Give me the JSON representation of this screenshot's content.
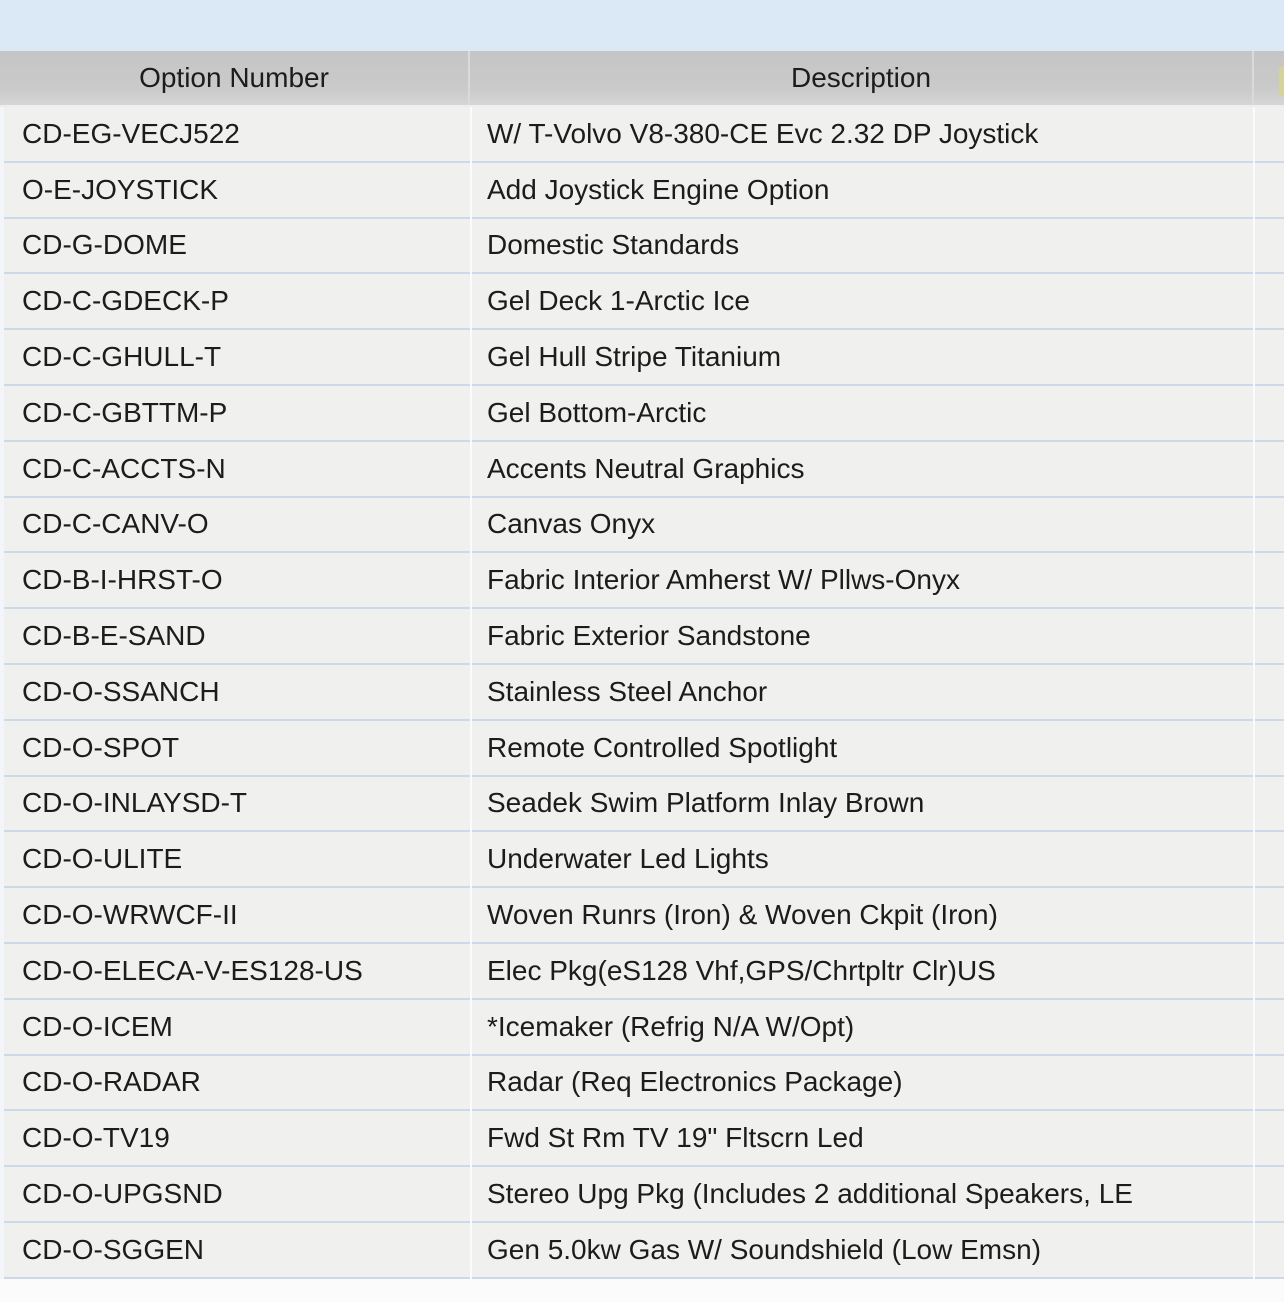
{
  "window": {
    "description": "Desktop application data grid listing boat option codes"
  },
  "colors": {
    "top_band": "#dbe8f6",
    "header_bg": "#c9c9c9",
    "row_bg": "#f0f0ee",
    "row_divider": "#ccd9e9",
    "text": "#1c1c1c",
    "accent": "#d6d29c",
    "page_bg": "#fbfbfb"
  },
  "table": {
    "columns": [
      {
        "label": "Option Number"
      },
      {
        "label": "Description"
      }
    ],
    "rows": [
      {
        "option": "CD-EG-VECJ522",
        "description": "W/ T-Volvo V8-380-CE Evc 2.32 DP Joystick"
      },
      {
        "option": "O-E-JOYSTICK",
        "description": "Add Joystick Engine Option"
      },
      {
        "option": "CD-G-DOME",
        "description": "Domestic Standards"
      },
      {
        "option": "CD-C-GDECK-P",
        "description": "Gel Deck 1-Arctic Ice"
      },
      {
        "option": "CD-C-GHULL-T",
        "description": "Gel Hull Stripe Titanium"
      },
      {
        "option": "CD-C-GBTTM-P",
        "description": "Gel Bottom-Arctic"
      },
      {
        "option": "CD-C-ACCTS-N",
        "description": "Accents Neutral Graphics"
      },
      {
        "option": "CD-C-CANV-O",
        "description": "Canvas Onyx"
      },
      {
        "option": "CD-B-I-HRST-O",
        "description": "Fabric Interior Amherst W/ Pllws-Onyx"
      },
      {
        "option": "CD-B-E-SAND",
        "description": "Fabric Exterior Sandstone"
      },
      {
        "option": "CD-O-SSANCH",
        "description": "Stainless Steel Anchor"
      },
      {
        "option": "CD-O-SPOT",
        "description": "Remote Controlled Spotlight"
      },
      {
        "option": "CD-O-INLAYSD-T",
        "description": "Seadek Swim Platform Inlay Brown"
      },
      {
        "option": "CD-O-ULITE",
        "description": "Underwater Led Lights"
      },
      {
        "option": "CD-O-WRWCF-II",
        "description": "Woven Runrs (Iron) & Woven Ckpit (Iron)"
      },
      {
        "option": "CD-O-ELECA-V-ES128-US",
        "description": "Elec Pkg(eS128 Vhf,GPS/Chrtpltr Clr)US"
      },
      {
        "option": "CD-O-ICEM",
        "description": "*Icemaker (Refrig N/A W/Opt)"
      },
      {
        "option": "CD-O-RADAR",
        "description": "Radar (Req Electronics Package)"
      },
      {
        "option": "CD-O-TV19",
        "description": "Fwd St Rm TV 19\" Fltscrn Led"
      },
      {
        "option": "CD-O-UPGSND",
        "description": "Stereo Upg Pkg (Includes 2 additional Speakers, LE"
      },
      {
        "option": "CD-O-SGGEN",
        "description": "Gen 5.0kw Gas W/ Soundshield (Low Emsn)"
      }
    ]
  }
}
